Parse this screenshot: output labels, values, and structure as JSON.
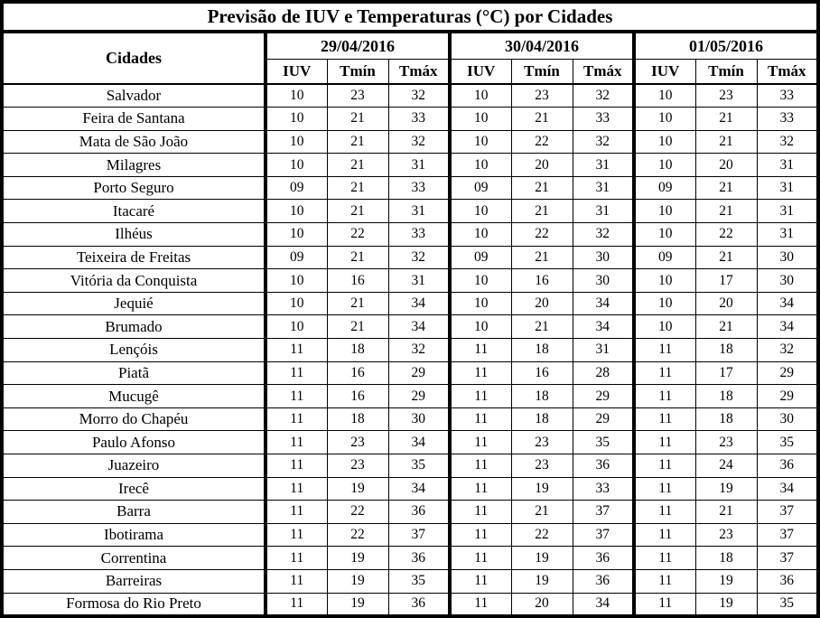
{
  "table": {
    "title": "Previsão de IUV e Temperaturas (°C) por Cidades",
    "cities_header": "Cidades",
    "dates": [
      "29/04/2016",
      "30/04/2016",
      "01/05/2016"
    ],
    "subheaders": [
      "IUV",
      "Tmín",
      "Tmáx"
    ],
    "rows": [
      {
        "city": "Salvador",
        "values": [
          [
            "10",
            "23",
            "32"
          ],
          [
            "10",
            "23",
            "32"
          ],
          [
            "10",
            "23",
            "33"
          ]
        ]
      },
      {
        "city": "Feira de Santana",
        "values": [
          [
            "10",
            "21",
            "33"
          ],
          [
            "10",
            "21",
            "33"
          ],
          [
            "10",
            "21",
            "33"
          ]
        ]
      },
      {
        "city": "Mata de São João",
        "values": [
          [
            "10",
            "21",
            "32"
          ],
          [
            "10",
            "22",
            "32"
          ],
          [
            "10",
            "21",
            "32"
          ]
        ]
      },
      {
        "city": "Milagres",
        "values": [
          [
            "10",
            "21",
            "31"
          ],
          [
            "10",
            "20",
            "31"
          ],
          [
            "10",
            "20",
            "31"
          ]
        ]
      },
      {
        "city": "Porto Seguro",
        "values": [
          [
            "09",
            "21",
            "33"
          ],
          [
            "09",
            "21",
            "31"
          ],
          [
            "09",
            "21",
            "31"
          ]
        ]
      },
      {
        "city": "Itacaré",
        "values": [
          [
            "10",
            "21",
            "31"
          ],
          [
            "10",
            "21",
            "31"
          ],
          [
            "10",
            "21",
            "31"
          ]
        ]
      },
      {
        "city": "Ilhéus",
        "values": [
          [
            "10",
            "22",
            "33"
          ],
          [
            "10",
            "22",
            "32"
          ],
          [
            "10",
            "22",
            "31"
          ]
        ]
      },
      {
        "city": "Teixeira de Freitas",
        "values": [
          [
            "09",
            "21",
            "32"
          ],
          [
            "09",
            "21",
            "30"
          ],
          [
            "09",
            "21",
            "30"
          ]
        ]
      },
      {
        "city": "Vitória da Conquista",
        "values": [
          [
            "10",
            "16",
            "31"
          ],
          [
            "10",
            "16",
            "30"
          ],
          [
            "10",
            "17",
            "30"
          ]
        ]
      },
      {
        "city": "Jequié",
        "values": [
          [
            "10",
            "21",
            "34"
          ],
          [
            "10",
            "20",
            "34"
          ],
          [
            "10",
            "20",
            "34"
          ]
        ]
      },
      {
        "city": "Brumado",
        "values": [
          [
            "10",
            "21",
            "34"
          ],
          [
            "10",
            "21",
            "34"
          ],
          [
            "10",
            "21",
            "34"
          ]
        ]
      },
      {
        "city": "Lençóis",
        "values": [
          [
            "11",
            "18",
            "32"
          ],
          [
            "11",
            "18",
            "31"
          ],
          [
            "11",
            "18",
            "32"
          ]
        ]
      },
      {
        "city": "Piatã",
        "values": [
          [
            "11",
            "16",
            "29"
          ],
          [
            "11",
            "16",
            "28"
          ],
          [
            "11",
            "17",
            "29"
          ]
        ]
      },
      {
        "city": "Mucugê",
        "values": [
          [
            "11",
            "16",
            "29"
          ],
          [
            "11",
            "18",
            "29"
          ],
          [
            "11",
            "18",
            "29"
          ]
        ]
      },
      {
        "city": "Morro do Chapéu",
        "values": [
          [
            "11",
            "18",
            "30"
          ],
          [
            "11",
            "18",
            "29"
          ],
          [
            "11",
            "18",
            "30"
          ]
        ]
      },
      {
        "city": "Paulo Afonso",
        "values": [
          [
            "11",
            "23",
            "34"
          ],
          [
            "11",
            "23",
            "35"
          ],
          [
            "11",
            "23",
            "35"
          ]
        ]
      },
      {
        "city": "Juazeiro",
        "values": [
          [
            "11",
            "23",
            "35"
          ],
          [
            "11",
            "23",
            "36"
          ],
          [
            "11",
            "24",
            "36"
          ]
        ]
      },
      {
        "city": "Irecê",
        "values": [
          [
            "11",
            "19",
            "34"
          ],
          [
            "11",
            "19",
            "33"
          ],
          [
            "11",
            "19",
            "34"
          ]
        ]
      },
      {
        "city": "Barra",
        "values": [
          [
            "11",
            "22",
            "36"
          ],
          [
            "11",
            "21",
            "37"
          ],
          [
            "11",
            "21",
            "37"
          ]
        ]
      },
      {
        "city": "Ibotirama",
        "values": [
          [
            "11",
            "22",
            "37"
          ],
          [
            "11",
            "22",
            "37"
          ],
          [
            "11",
            "23",
            "37"
          ]
        ]
      },
      {
        "city": "Correntina",
        "values": [
          [
            "11",
            "19",
            "36"
          ],
          [
            "11",
            "19",
            "36"
          ],
          [
            "11",
            "18",
            "37"
          ]
        ]
      },
      {
        "city": "Barreiras",
        "values": [
          [
            "11",
            "19",
            "35"
          ],
          [
            "11",
            "19",
            "36"
          ],
          [
            "11",
            "19",
            "36"
          ]
        ]
      },
      {
        "city": "Formosa do Rio Preto",
        "values": [
          [
            "11",
            "19",
            "36"
          ],
          [
            "11",
            "20",
            "34"
          ],
          [
            "11",
            "19",
            "35"
          ]
        ]
      }
    ]
  },
  "colors": {
    "border": "#000000",
    "background": "#ffffff",
    "text": "#000000"
  }
}
